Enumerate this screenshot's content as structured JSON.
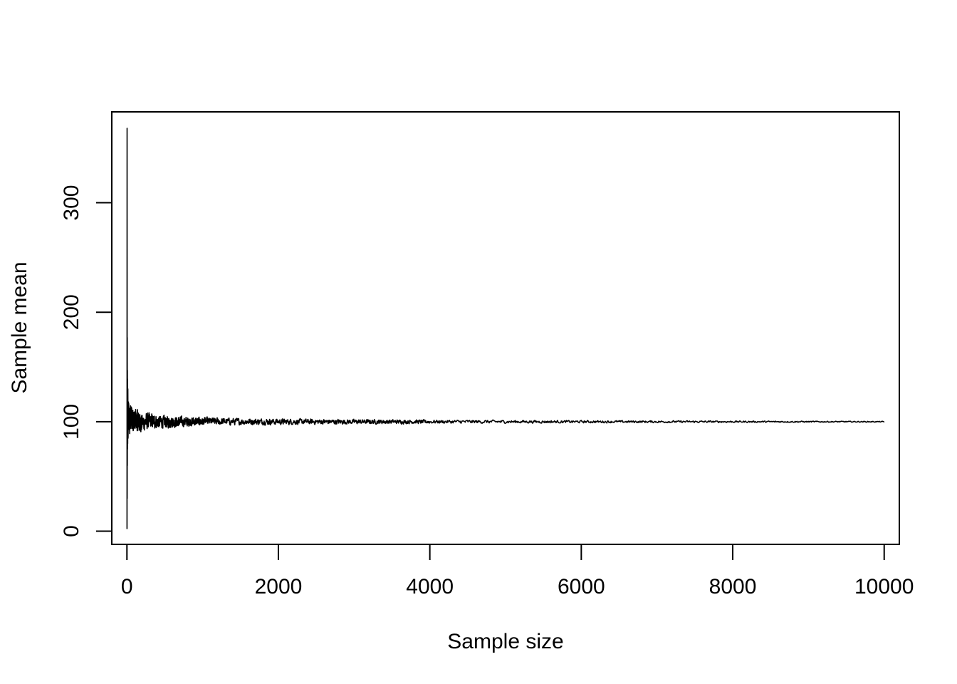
{
  "chart_data": {
    "type": "line",
    "title": "",
    "xlabel": "Sample size",
    "ylabel": "Sample mean",
    "xlim": [
      -200,
      10200
    ],
    "ylim": [
      -12,
      383
    ],
    "x_ticks": [
      0,
      2000,
      4000,
      6000,
      8000,
      10000
    ],
    "x_tick_labels": [
      "0",
      "2000",
      "4000",
      "6000",
      "8000",
      "10000"
    ],
    "y_ticks": [
      0,
      100,
      200,
      300
    ],
    "y_tick_labels": [
      "0",
      "100",
      "200",
      "300"
    ],
    "grid": false,
    "legend": "none",
    "series": [
      {
        "color": "#000000",
        "x": [
          1,
          2,
          3,
          4,
          5,
          6,
          7,
          8,
          10,
          12,
          15,
          20,
          30,
          50,
          100,
          200,
          300,
          500,
          1000,
          2000,
          5000,
          10000
        ],
        "values": [
          2,
          368,
          30,
          177,
          60,
          147,
          75,
          139,
          80,
          130,
          85,
          118,
          88,
          112,
          104,
          97,
          102,
          99,
          101,
          100,
          100,
          100
        ],
        "noise_envelope": {
          "x": [
            20,
            50,
            100,
            200,
            400,
            700,
            1000,
            1500,
            2000,
            3000,
            4000,
            5000,
            6000,
            8000,
            10000
          ],
          "half_width": [
            22,
            18,
            14,
            11,
            8,
            6,
            5,
            4,
            3.5,
            2.8,
            2.2,
            1.8,
            1.5,
            1.0,
            0.5
          ]
        },
        "converges_to": 100
      }
    ]
  }
}
